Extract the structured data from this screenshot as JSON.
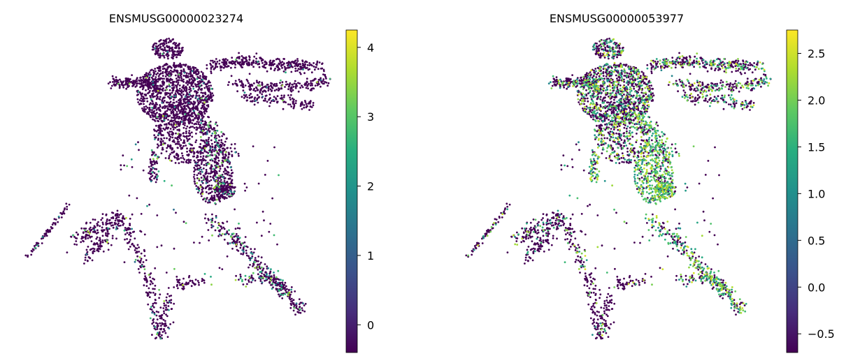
{
  "chart_data": [
    {
      "type": "scatter",
      "title": "ENSMUSG00000023274",
      "xlabel": "",
      "ylabel": "",
      "grid": false,
      "axes_visible": false,
      "marker": "small-dot",
      "colormap": "viridis",
      "colorbar": {
        "placement": "right",
        "range": [
          -0.4,
          4.25
        ],
        "ticks": [
          0,
          1,
          2,
          3,
          4
        ],
        "tick_labels": [
          "0",
          "1",
          "2",
          "3",
          "4"
        ]
      },
      "value_profile": {
        "background": -0.4,
        "high_region": "narrow lower-right tail and mid stem",
        "high_fraction": 0.07
      }
    },
    {
      "type": "scatter",
      "title": "ENSMUSG00000053977",
      "xlabel": "",
      "ylabel": "",
      "grid": false,
      "axes_visible": false,
      "marker": "small-dot",
      "colormap": "viridis",
      "colorbar": {
        "placement": "right",
        "range": [
          -0.7,
          2.75
        ],
        "ticks": [
          -0.5,
          0.0,
          0.5,
          1.0,
          1.5,
          2.0,
          2.5
        ],
        "tick_labels": [
          "−0.5",
          "0.0",
          "0.5",
          "1.0",
          "1.5",
          "2.0",
          "2.5"
        ]
      },
      "value_profile": {
        "background": -0.7,
        "high_region": "central stem and upper-left body",
        "high_fraction": 0.35
      }
    }
  ]
}
